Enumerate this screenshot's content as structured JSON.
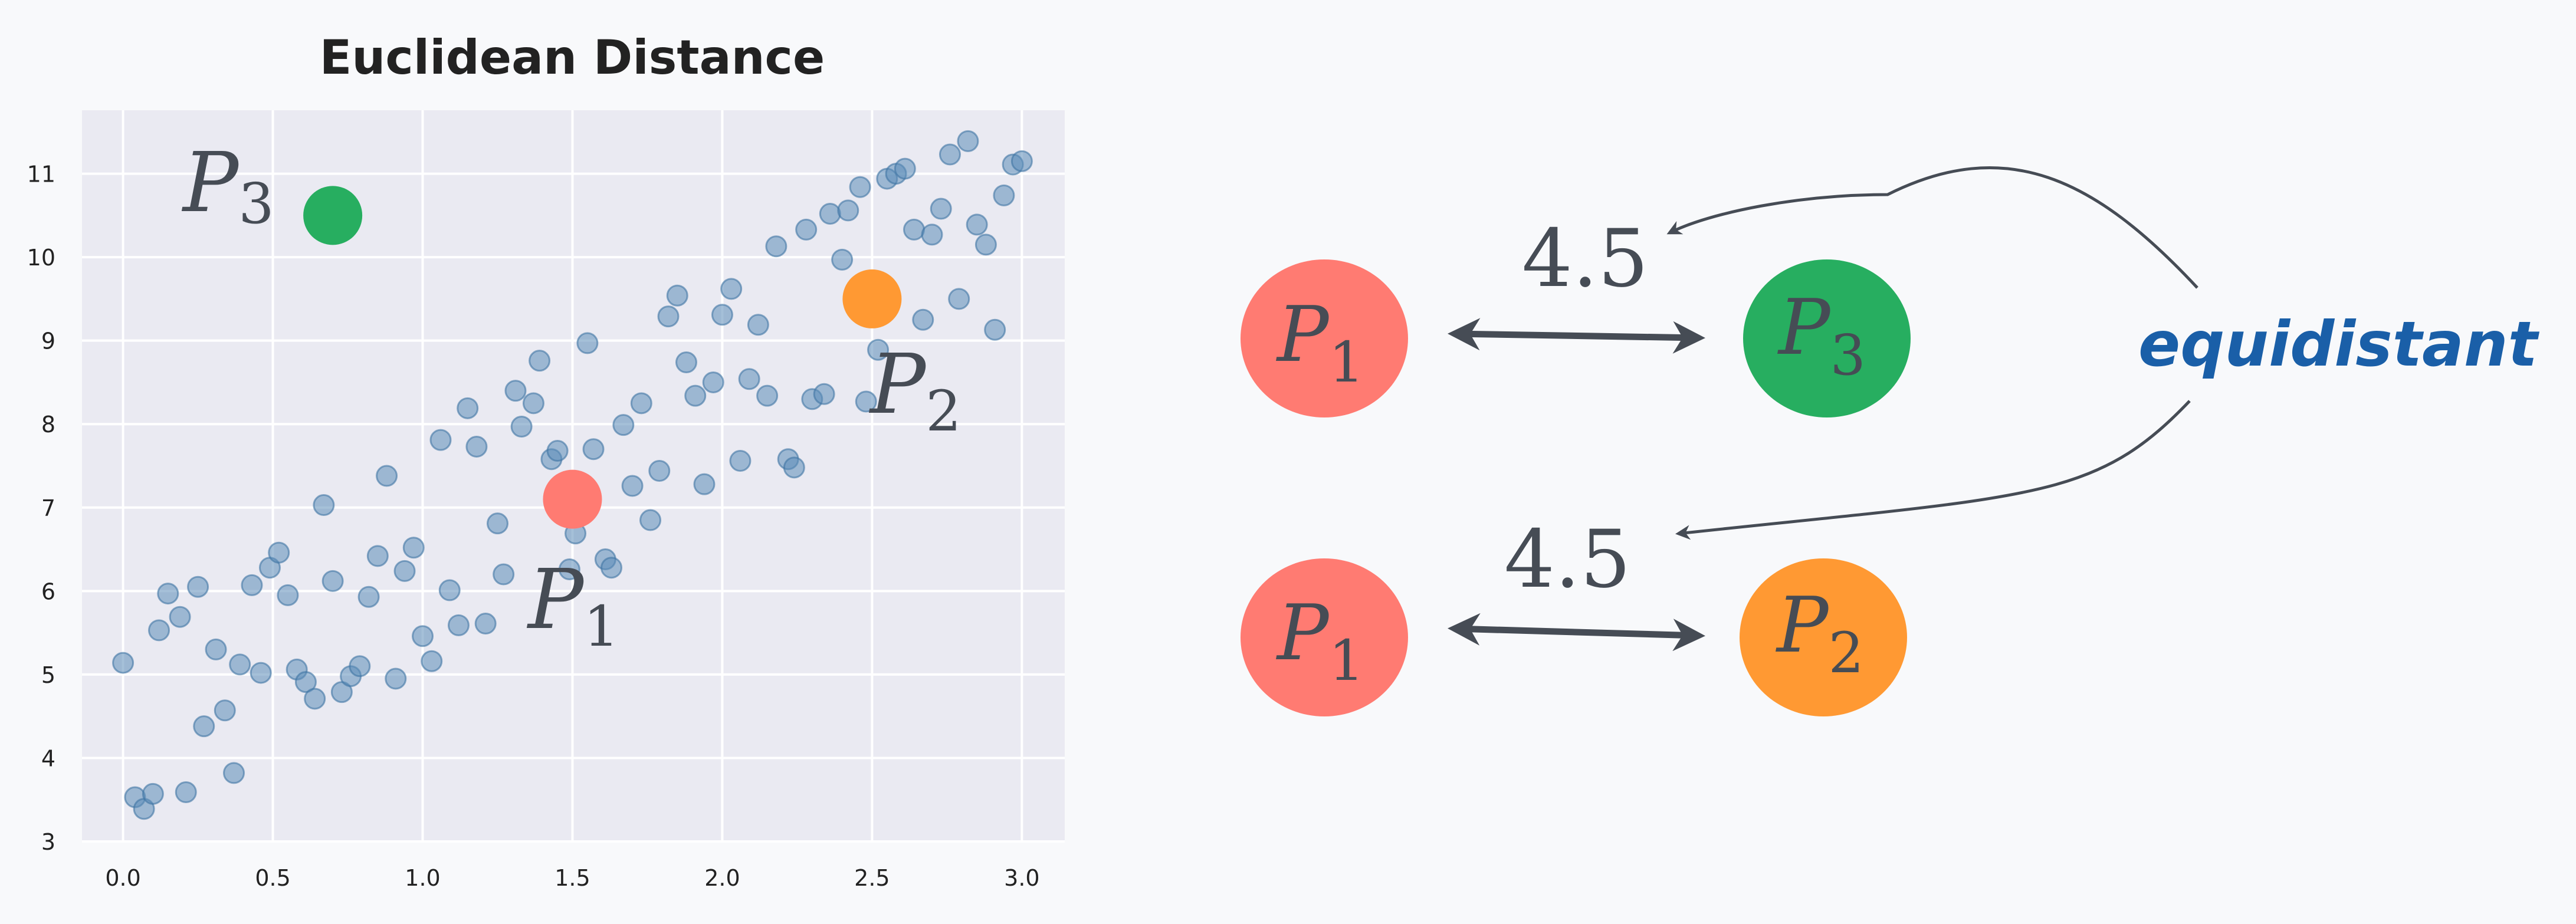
{
  "chart_data": {
    "type": "scatter",
    "title": "Euclidean Distance",
    "xlabel": "",
    "ylabel": "",
    "xlim": [
      -0.137,
      3.143
    ],
    "ylim": [
      3,
      11.76
    ],
    "xticks": [
      "0.0",
      "0.5",
      "1.0",
      "1.5",
      "2.0",
      "2.5",
      "3.0"
    ],
    "yticks": [
      "3",
      "4",
      "5",
      "6",
      "7",
      "8",
      "9",
      "10",
      "11"
    ],
    "grid": true,
    "point_color": "#5b8db8",
    "points": [
      [
        0.0,
        5.14
      ],
      [
        0.04,
        3.53
      ],
      [
        0.07,
        3.39
      ],
      [
        0.1,
        3.57
      ],
      [
        0.12,
        5.53
      ],
      [
        0.15,
        5.97
      ],
      [
        0.19,
        5.69
      ],
      [
        0.21,
        3.59
      ],
      [
        0.25,
        6.05
      ],
      [
        0.27,
        4.38
      ],
      [
        0.31,
        5.3
      ],
      [
        0.34,
        4.57
      ],
      [
        0.37,
        3.82
      ],
      [
        0.39,
        5.12
      ],
      [
        0.43,
        6.07
      ],
      [
        0.46,
        5.02
      ],
      [
        0.49,
        6.28
      ],
      [
        0.52,
        6.46
      ],
      [
        0.55,
        5.95
      ],
      [
        0.58,
        5.06
      ],
      [
        0.61,
        4.91
      ],
      [
        0.64,
        4.71
      ],
      [
        0.67,
        7.03
      ],
      [
        0.7,
        6.12
      ],
      [
        0.73,
        4.79
      ],
      [
        0.76,
        4.98
      ],
      [
        0.79,
        5.1
      ],
      [
        0.82,
        5.93
      ],
      [
        0.85,
        6.42
      ],
      [
        0.88,
        7.38
      ],
      [
        0.91,
        4.95
      ],
      [
        0.94,
        6.24
      ],
      [
        0.97,
        6.52
      ],
      [
        1.0,
        5.46
      ],
      [
        1.03,
        5.16
      ],
      [
        1.06,
        7.81
      ],
      [
        1.09,
        6.01
      ],
      [
        1.12,
        5.59
      ],
      [
        1.15,
        8.19
      ],
      [
        1.18,
        7.73
      ],
      [
        1.21,
        5.61
      ],
      [
        1.25,
        6.81
      ],
      [
        1.27,
        6.2
      ],
      [
        1.31,
        8.4
      ],
      [
        1.33,
        7.97
      ],
      [
        1.37,
        8.25
      ],
      [
        1.39,
        8.76
      ],
      [
        1.43,
        7.58
      ],
      [
        1.45,
        7.68
      ],
      [
        1.49,
        6.26
      ],
      [
        1.51,
        6.69
      ],
      [
        1.55,
        8.97
      ],
      [
        1.57,
        7.7
      ],
      [
        1.61,
        6.38
      ],
      [
        1.63,
        6.28
      ],
      [
        1.67,
        7.99
      ],
      [
        1.7,
        7.26
      ],
      [
        1.73,
        8.25
      ],
      [
        1.76,
        6.85
      ],
      [
        1.79,
        7.44
      ],
      [
        1.82,
        9.29
      ],
      [
        1.85,
        9.54
      ],
      [
        1.88,
        8.74
      ],
      [
        1.91,
        8.34
      ],
      [
        1.94,
        7.28
      ],
      [
        1.97,
        8.5
      ],
      [
        2.0,
        9.31
      ],
      [
        2.03,
        9.62
      ],
      [
        2.06,
        7.56
      ],
      [
        2.09,
        8.54
      ],
      [
        2.12,
        9.19
      ],
      [
        2.15,
        8.34
      ],
      [
        2.18,
        10.13
      ],
      [
        2.22,
        7.58
      ],
      [
        2.24,
        7.48
      ],
      [
        2.28,
        10.33
      ],
      [
        2.3,
        8.3
      ],
      [
        2.34,
        8.36
      ],
      [
        2.36,
        10.52
      ],
      [
        2.4,
        9.97
      ],
      [
        2.42,
        10.56
      ],
      [
        2.46,
        10.84
      ],
      [
        2.48,
        8.27
      ],
      [
        2.52,
        8.89
      ],
      [
        2.55,
        10.94
      ],
      [
        2.58,
        11.0
      ],
      [
        2.61,
        11.06
      ],
      [
        2.64,
        10.33
      ],
      [
        2.67,
        9.25
      ],
      [
        2.7,
        10.27
      ],
      [
        2.73,
        10.58
      ],
      [
        2.76,
        11.23
      ],
      [
        2.79,
        9.5
      ],
      [
        2.82,
        11.39
      ],
      [
        2.85,
        10.39
      ],
      [
        2.88,
        10.15
      ],
      [
        2.91,
        9.13
      ],
      [
        2.94,
        10.74
      ],
      [
        2.97,
        11.11
      ],
      [
        3.0,
        11.15
      ]
    ],
    "highlighted": [
      {
        "label": "P",
        "sub": "1",
        "x": 1.5,
        "y": 7.1,
        "color": "#ff7b72"
      },
      {
        "label": "P",
        "sub": "2",
        "x": 2.5,
        "y": 9.5,
        "color": "#ff9933"
      },
      {
        "label": "P",
        "sub": "3",
        "x": 0.7,
        "y": 10.5,
        "color": "#27ae60"
      }
    ]
  },
  "diagram": {
    "top_pair": {
      "left": {
        "label": "P",
        "sub": "1",
        "color": "#ff7b72"
      },
      "right": {
        "label": "P",
        "sub": "3",
        "color": "#27ae60"
      },
      "distance": "4.5"
    },
    "bottom_pair": {
      "left": {
        "label": "P",
        "sub": "1",
        "color": "#ff7b72"
      },
      "right": {
        "label": "P",
        "sub": "2",
        "color": "#ff9933"
      },
      "distance": "4.5"
    },
    "annotation": {
      "text": "equidistant",
      "color": "#1a5fa8"
    },
    "arrow_color": "#464c55"
  }
}
